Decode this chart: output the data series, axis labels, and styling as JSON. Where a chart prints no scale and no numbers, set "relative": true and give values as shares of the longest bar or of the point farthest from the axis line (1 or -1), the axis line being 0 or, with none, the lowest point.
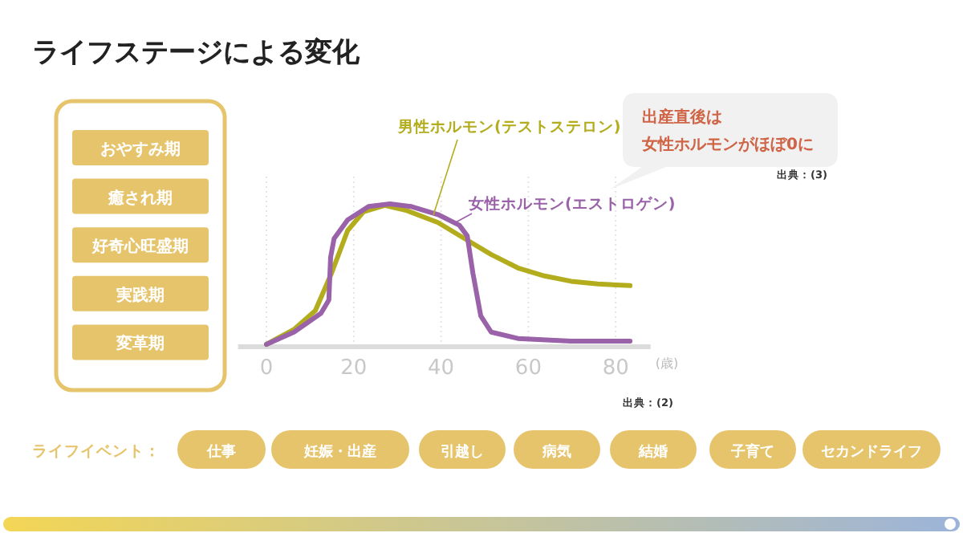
{
  "chart_data": {
    "type": "line",
    "title": "ライフステージによる変化",
    "xlabel": "(歳)",
    "relative": true,
    "xlim": [
      -6.5,
      88
    ],
    "xticks": [
      0,
      20,
      40,
      60,
      80
    ],
    "grid": "x",
    "legend": false,
    "line_style": "solid",
    "series": [
      {
        "name": "男性ホルモン(テストステロン)",
        "color": "#b3ad1e",
        "x": [
          0,
          6.3,
          11.2,
          14.9,
          18.6,
          22.2,
          27.1,
          32.0,
          39.3,
          45.4,
          51.5,
          57.6,
          63.7,
          69.8,
          75.9,
          83.3
        ],
        "values": [
          0,
          0.106,
          0.24,
          0.506,
          0.81,
          0.943,
          0.989,
          0.954,
          0.867,
          0.753,
          0.639,
          0.544,
          0.487,
          0.449,
          0.43,
          0.418
        ]
      },
      {
        "name": "女性ホルモン(エストロゲン)",
        "color": "#9a62a8",
        "x": [
          0,
          6.3,
          12.5,
          14.3,
          14.7,
          15.5,
          18.6,
          23.4,
          28.3,
          33.2,
          39.3,
          44.2,
          46.0,
          47.3,
          49.1,
          51.5,
          57.6,
          69.8,
          83.3
        ],
        "values": [
          0,
          0.087,
          0.221,
          0.316,
          0.62,
          0.753,
          0.886,
          0.981,
          1.0,
          0.981,
          0.924,
          0.848,
          0.772,
          0.506,
          0.202,
          0.087,
          0.042,
          0.023,
          0.023
        ]
      }
    ],
    "annotations": [
      "出産直後は",
      "女性ホルモンがほぼ0に",
      "出典：(3)",
      "出典：(2)",
      "おやすみ期",
      "癒され期",
      "好奇心旺盛期",
      "実践期",
      "変革期",
      "ライフイベント：",
      "仕事",
      "妊娠・出産",
      "引越し",
      "病気",
      "結婚",
      "子育て",
      "セカンドライフ"
    ]
  }
}
